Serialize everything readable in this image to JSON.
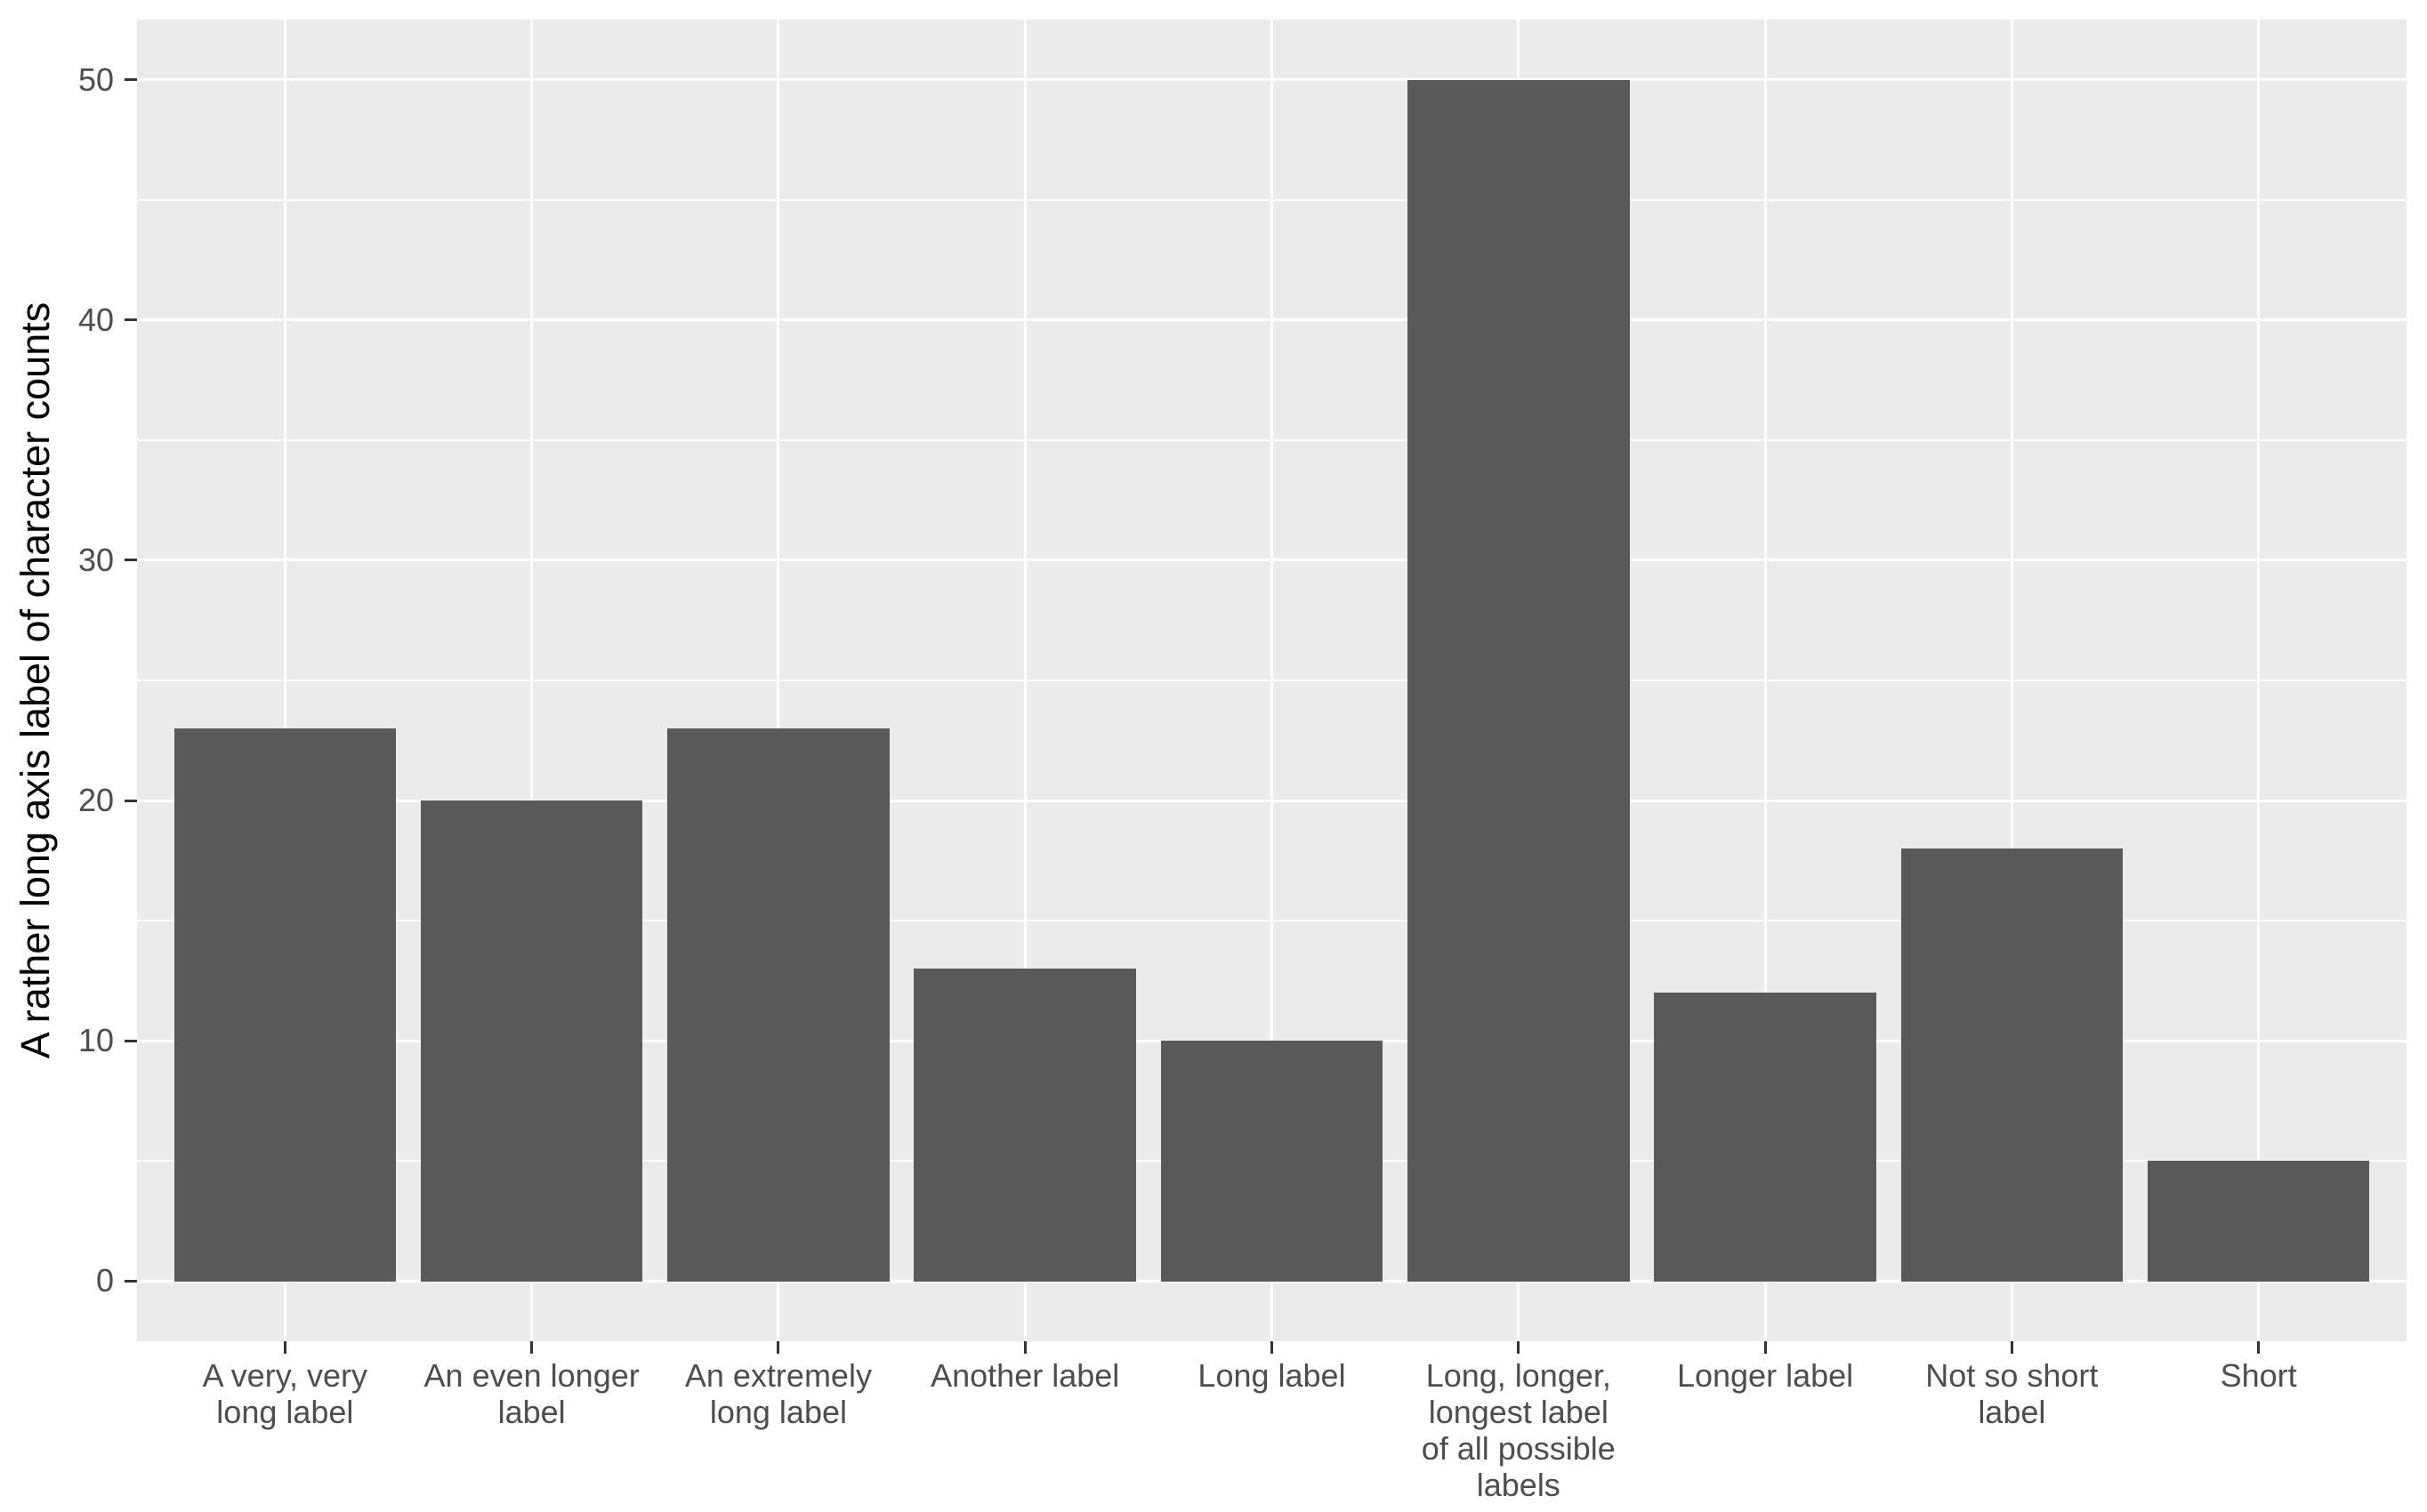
{
  "chart_data": {
    "type": "bar",
    "title": "",
    "xlabel": "",
    "ylabel": "A rather long axis label of character counts",
    "categories": [
      "A very, very\nlong label",
      "An even longer\nlabel",
      "An extremely\nlong label",
      "Another label",
      "Long label",
      "Long, longer,\nlongest label\nof all possible\nlabels",
      "Longer label",
      "Not so short\nlabel",
      "Short"
    ],
    "values": [
      23,
      20,
      23,
      13,
      10,
      50,
      12,
      18,
      5
    ],
    "yticks": [
      0,
      10,
      20,
      30,
      40,
      50
    ],
    "yticks_minor": [
      5,
      15,
      25,
      35,
      45
    ],
    "ylim": [
      -2.5,
      52.5
    ],
    "bar_width_fraction": 0.9,
    "grid": true,
    "legend_position": "none",
    "colors": {
      "bar_fill": "#595959",
      "panel_background": "#EBEBEB",
      "gridline": "#FFFFFF",
      "tick_mark": "#333333",
      "axis_text": "#4D4D4D",
      "axis_title": "#000000",
      "outer_background": "#FFFFFF"
    }
  }
}
